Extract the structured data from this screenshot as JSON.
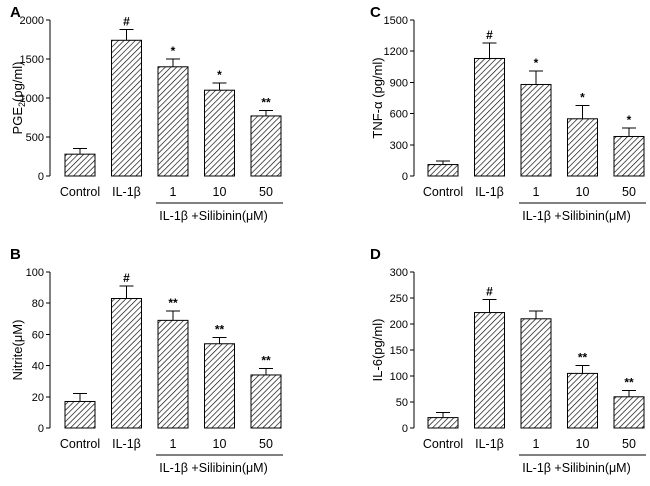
{
  "chart_data": [
    {
      "panel": "A",
      "type": "bar",
      "ylabel": "PGE",
      "ylabel_sub": "2",
      "ylabel_suffix": "(pg/ml)",
      "categories": [
        "Control",
        "IL-1β",
        "1",
        "10",
        "50"
      ],
      "values": [
        280,
        1740,
        1400,
        1100,
        770
      ],
      "errors": [
        70,
        140,
        100,
        90,
        70
      ],
      "significance": [
        "",
        "#",
        "*",
        "*",
        "**"
      ],
      "ylim": [
        0,
        2000
      ],
      "yticks": [
        "0",
        "500",
        "1000",
        "1500",
        "2000"
      ],
      "group_label": "IL-1β +Silibinin(μM)"
    },
    {
      "panel": "B",
      "type": "bar",
      "ylabel": "Nitrite(μM)",
      "categories": [
        "Control",
        "IL-1β",
        "1",
        "10",
        "50"
      ],
      "values": [
        17,
        83,
        69,
        54,
        34
      ],
      "errors": [
        5,
        8,
        6,
        4,
        4
      ],
      "significance": [
        "",
        "#",
        "**",
        "**",
        "**"
      ],
      "ylim": [
        0,
        100
      ],
      "yticks": [
        "0",
        "20",
        "40",
        "60",
        "80",
        "100"
      ],
      "group_label": "IL-1β +Silibinin(μM)"
    },
    {
      "panel": "C",
      "type": "bar",
      "ylabel": "TNF-α (pg/ml)",
      "categories": [
        "Control",
        "IL-1β",
        "1",
        "10",
        "50"
      ],
      "values": [
        110,
        1130,
        880,
        550,
        380
      ],
      "errors": [
        35,
        150,
        130,
        130,
        80
      ],
      "significance": [
        "",
        "#",
        "*",
        "*",
        "*"
      ],
      "ylim": [
        0,
        1500
      ],
      "yticks": [
        "0",
        "300",
        "600",
        "900",
        "1200",
        "1500"
      ],
      "group_label": "IL-1β +Silibinin(μM)"
    },
    {
      "panel": "D",
      "type": "bar",
      "ylabel": "IL-6(pg/ml)",
      "categories": [
        "Control",
        "IL-1β",
        "1",
        "10",
        "50"
      ],
      "values": [
        20,
        222,
        210,
        105,
        60
      ],
      "errors": [
        10,
        25,
        15,
        15,
        12
      ],
      "significance": [
        "",
        "#",
        "",
        "**",
        "**"
      ],
      "ylim": [
        0,
        300
      ],
      "yticks": [
        "0",
        "50",
        "100",
        "150",
        "200",
        "250",
        "300"
      ],
      "group_label": "IL-1β +Silibinin(μM)"
    }
  ]
}
